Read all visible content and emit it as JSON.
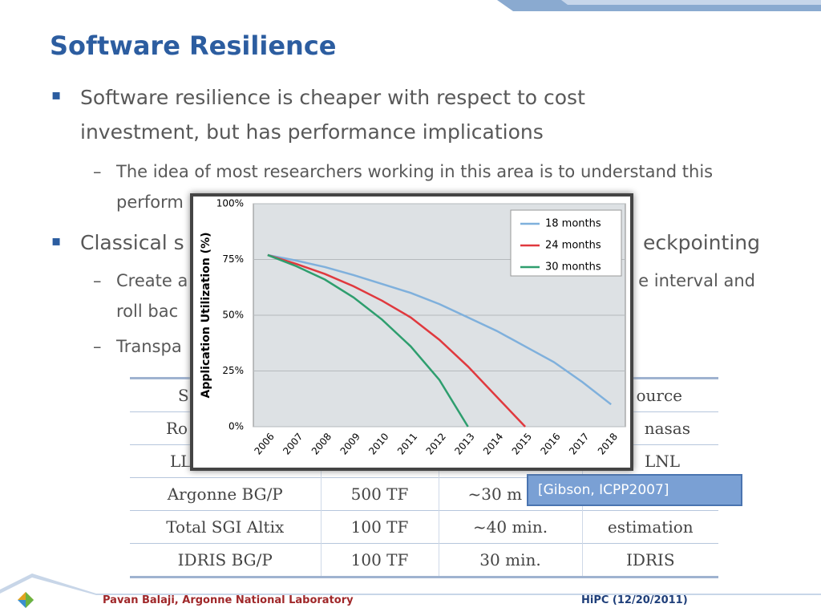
{
  "slide": {
    "title": "Software Resilience",
    "bullet1": [
      "Software resilience is cheaper with respect to cost",
      "investment, but has performance implications"
    ],
    "sub1": [
      "The idea of most researchers working in this area is to understand this",
      "perform"
    ],
    "bullet2": [
      "Classical s",
      "eckpointing"
    ],
    "sub2": [
      "Create a",
      "e interval and",
      "roll bac"
    ],
    "sub3": "Transpa"
  },
  "table": {
    "rows": [
      [
        "S",
        "ource"
      ],
      [
        "Ro",
        "nasas"
      ],
      [
        "LL",
        "LNL"
      ],
      [
        "Argonne BG/P",
        "500 TF",
        "~30 m"
      ],
      [
        "Total SGI Altix",
        "100 TF",
        "~40 min.",
        "estimation"
      ],
      [
        "IDRIS BG/P",
        "100 TF",
        "30 min.",
        "IDRIS"
      ]
    ]
  },
  "citation": "[Gibson, ICPP2007]",
  "footer": {
    "author": "Pavan Balaji, Argonne National Laboratory",
    "venue": "HiPC (12/20/2011)"
  },
  "chart_data": {
    "type": "line",
    "ylabel": "Application Utilization (%)",
    "categories": [
      "2006",
      "2007",
      "2008",
      "2009",
      "2010",
      "2011",
      "2012",
      "2013",
      "2014",
      "2015",
      "2016",
      "2017",
      "2018"
    ],
    "series": [
      {
        "name": "18 months",
        "color": "#7fb0dc",
        "values": [
          77,
          74.5,
          71.6,
          68,
          64,
          60,
          55,
          49,
          43,
          36,
          29,
          20,
          10
        ]
      },
      {
        "name": "24 months",
        "color": "#e0393e",
        "values": [
          77,
          73,
          68.5,
          63,
          56.5,
          49,
          39,
          27,
          13.5,
          0,
          null,
          null,
          null
        ]
      },
      {
        "name": "30 months",
        "color": "#2e9e6e",
        "values": [
          77,
          72,
          66,
          58,
          48,
          36,
          21,
          0,
          null,
          null,
          null,
          null,
          null
        ]
      }
    ],
    "ylim": [
      0,
      100
    ],
    "yticks": [
      {
        "value": 0,
        "label": "0%"
      },
      {
        "value": 25,
        "label": "25%"
      },
      {
        "value": 50,
        "label": "50%"
      },
      {
        "value": 75,
        "label": "75%"
      },
      {
        "value": 100,
        "label": "100%"
      }
    ],
    "grid": true,
    "legend": "upper right"
  }
}
